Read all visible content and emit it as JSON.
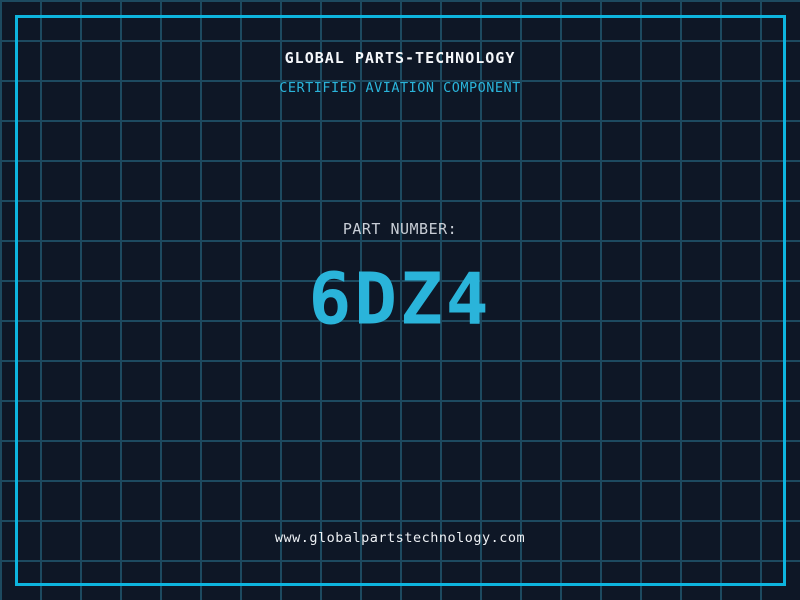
{
  "header": {
    "company_name": "GLOBAL PARTS-TECHNOLOGY",
    "certification": "CERTIFIED AVIATION COMPONENT"
  },
  "part": {
    "label": "PART NUMBER:",
    "number": "6DZ4"
  },
  "footer": {
    "website": "www.globalpartstechnology.com"
  },
  "colors": {
    "background": "#0e1726",
    "grid_line": "#1d4a60",
    "frame_border": "#0db4de",
    "accent_cyan": "#2ab4da",
    "heading_white": "#f5f7fa",
    "label_gray": "#c9ced6",
    "footer_white": "#eef1f5"
  }
}
